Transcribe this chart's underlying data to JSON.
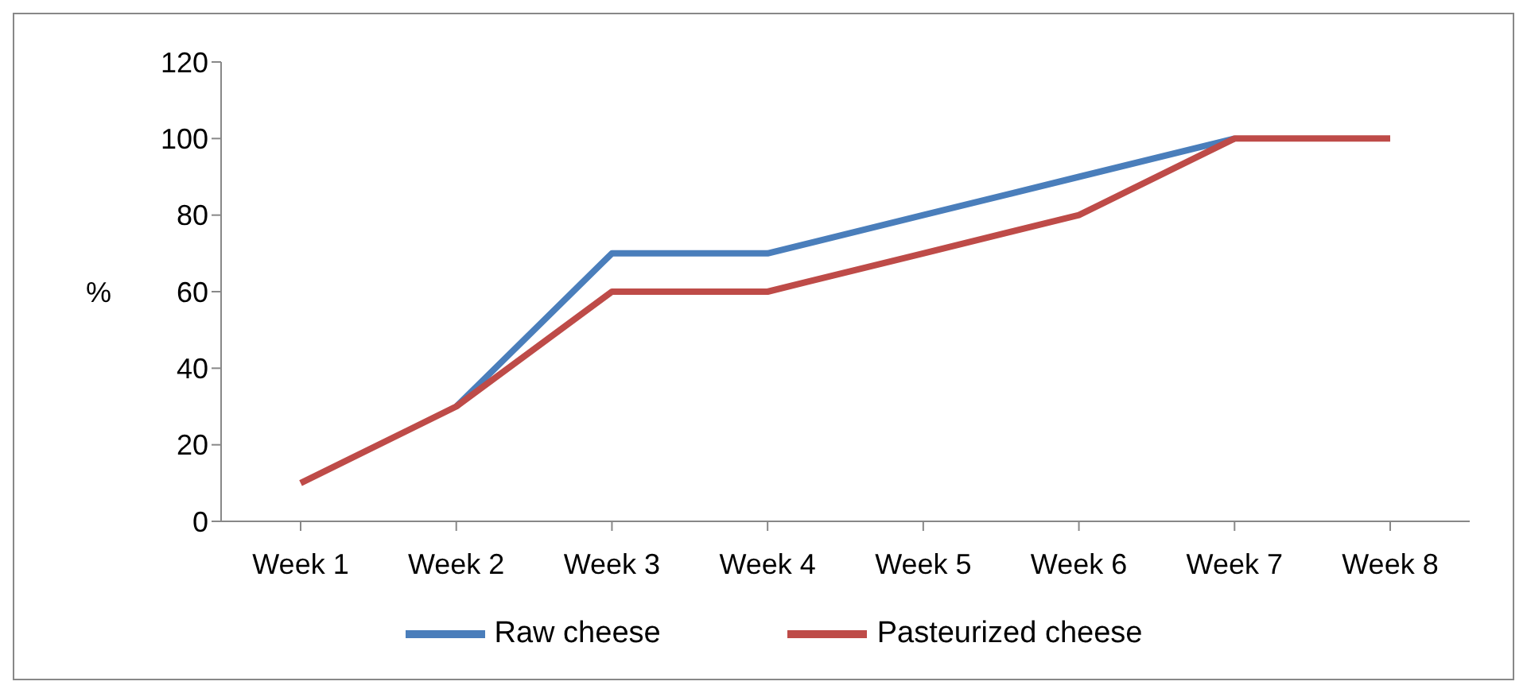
{
  "chart_data": {
    "type": "line",
    "ylabel": "%",
    "categories": [
      "Week 1",
      "Week 2",
      "Week 3",
      "Week 4",
      "Week 5",
      "Week 6",
      "Week 7",
      "Week 8"
    ],
    "series": [
      {
        "name": "Raw cheese",
        "color": "#4a7ebb",
        "values": [
          null,
          30,
          70,
          70,
          80,
          90,
          100,
          null
        ]
      },
      {
        "name": "Pasteurized cheese",
        "color": "#be4b48",
        "values": [
          10,
          30,
          60,
          60,
          70,
          80,
          100,
          100
        ]
      }
    ],
    "ylim": [
      0,
      120
    ],
    "yticks": [
      0,
      20,
      40,
      60,
      80,
      100,
      120
    ],
    "grid": false,
    "legend": "bottom",
    "marker": "none",
    "line_style": "solid"
  }
}
